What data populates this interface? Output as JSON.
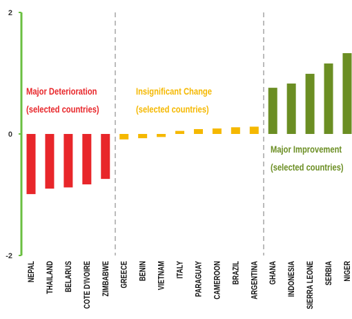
{
  "chart_data": {
    "type": "bar",
    "categories": [
      "NEPAL",
      "THAILAND",
      "BELARUS",
      "COTE D'IVOIRE",
      "ZIMBABWE",
      "GREECE",
      "BENIN",
      "VIETNAM",
      "ITALY",
      "PARAGUAY",
      "CAMEROON",
      "BRAZIL",
      "ARGENTINA",
      "GHANA",
      "INDONESIA",
      "SIERRA LEONE",
      "SERBIA",
      "NIGER"
    ],
    "values": [
      -0.99,
      -0.9,
      -0.88,
      -0.83,
      -0.74,
      -0.09,
      -0.07,
      -0.05,
      0.05,
      0.08,
      0.09,
      0.11,
      0.12,
      0.76,
      0.83,
      0.99,
      1.16,
      1.33
    ],
    "colors": [
      "#e8262a",
      "#e8262a",
      "#e8262a",
      "#e8262a",
      "#e8262a",
      "#f5b800",
      "#f5b800",
      "#f5b800",
      "#f5b800",
      "#f5b800",
      "#f5b800",
      "#f5b800",
      "#f5b800",
      "#6b8e23",
      "#6b8e23",
      "#6b8e23",
      "#6b8e23",
      "#6b8e23"
    ],
    "ylim": [
      -2,
      2
    ],
    "yticks": [
      -2,
      0,
      2
    ],
    "axis_color": "#6abf40",
    "annotations": [
      {
        "lines": [
          "Major Deterioration",
          "(selected countries)"
        ],
        "color": "#e8262a"
      },
      {
        "lines": [
          "Insignificant Change",
          "(selected countries)"
        ],
        "color": "#f5b800"
      },
      {
        "lines": [
          "Major Improvement",
          "(selected countries)"
        ],
        "color": "#6b8e23"
      }
    ]
  }
}
